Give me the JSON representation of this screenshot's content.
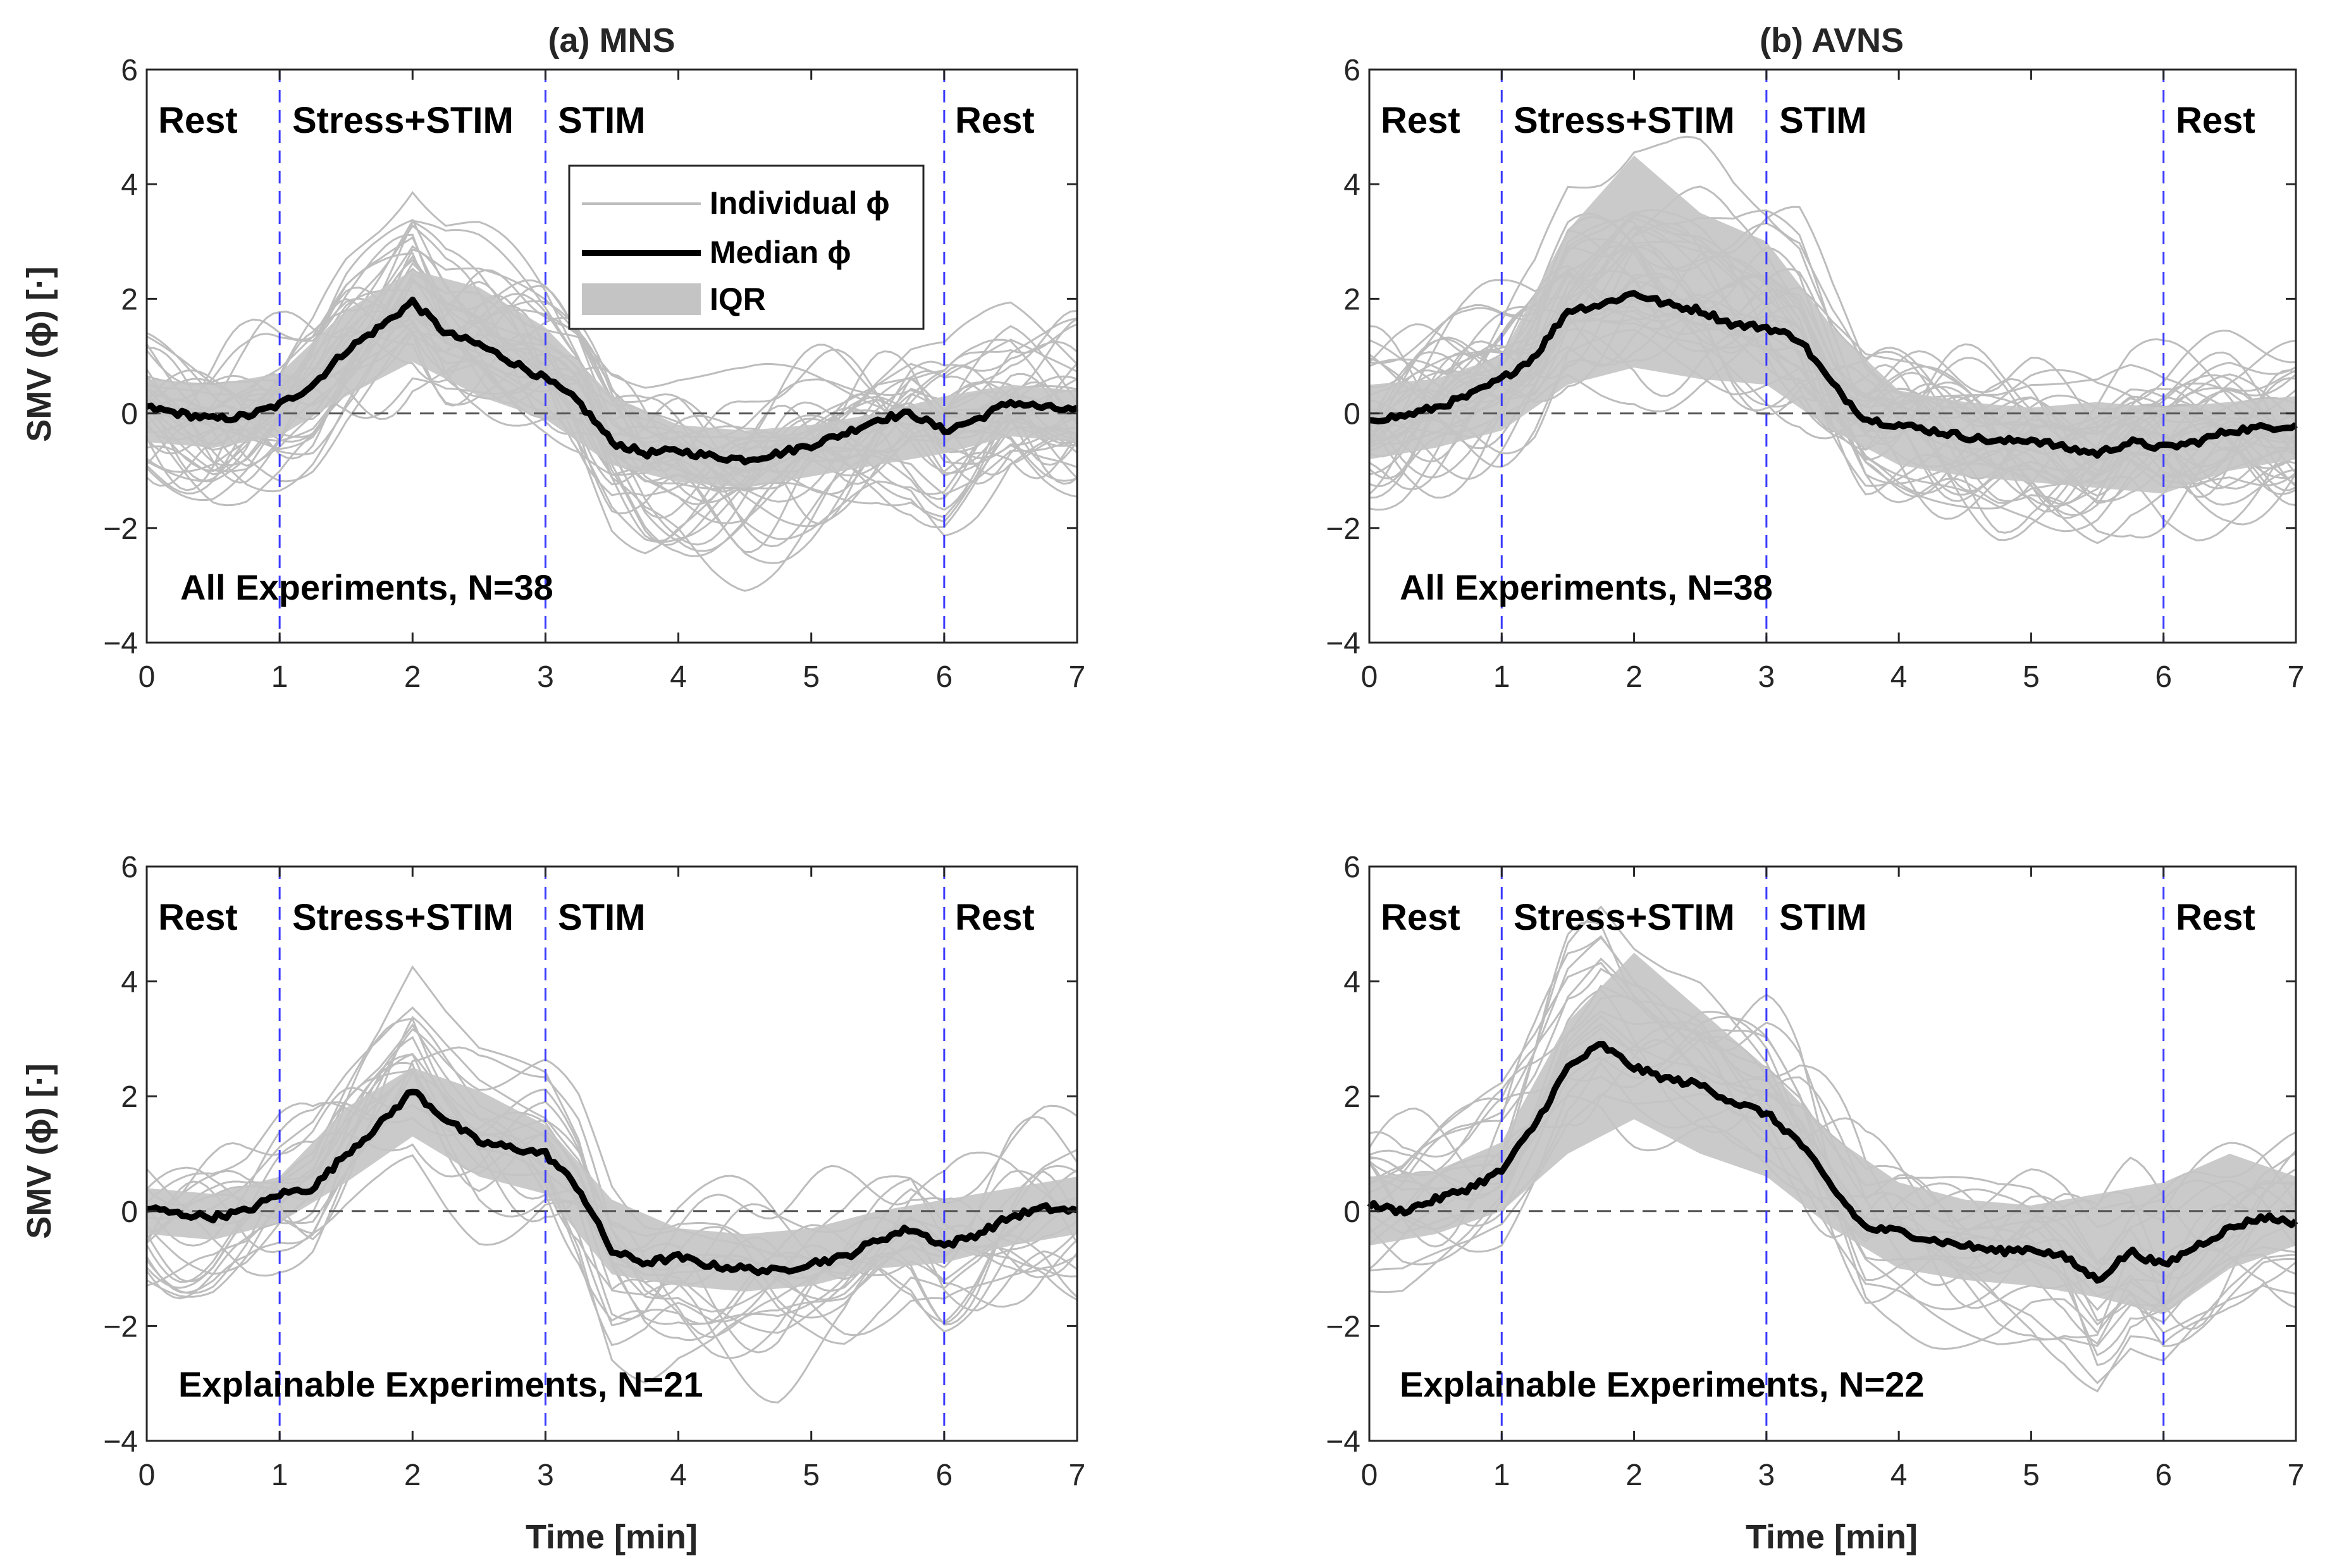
{
  "figure": {
    "ylabel": "SMV (ϕ) [·]",
    "xlabel": "Time [min]",
    "legend": {
      "individual": "Individual ϕ",
      "median": "Median ϕ",
      "iqr": "IQR"
    },
    "phases": [
      {
        "label": "Rest",
        "start": 0
      },
      {
        "label": "Stress+STIM",
        "start": 1
      },
      {
        "label": "STIM",
        "start": 3
      },
      {
        "label": "Rest",
        "start": 6
      }
    ],
    "phase_boundaries": [
      1,
      3,
      6
    ],
    "colors": {
      "individual": "#bdbdbd",
      "median": "#000000",
      "iqr": "#c4c4c4",
      "boundary": "#3b3bff",
      "zero": "#555555"
    }
  },
  "chart_data": [
    {
      "id": "a-top",
      "type": "line",
      "title": "(a) MNS",
      "annotation": "All Experiments, N=38",
      "n_individual": 38,
      "xlim": [
        0,
        7
      ],
      "ylim": [
        -4,
        6
      ],
      "xticks": [
        "0",
        "1",
        "2",
        "3",
        "4",
        "5",
        "6",
        "7"
      ],
      "yticks": [
        "6",
        "4",
        "2",
        "0",
        "−2",
        "−4"
      ],
      "series": [
        {
          "name": "Median ϕ",
          "x": [
            0,
            0.25,
            0.5,
            0.75,
            1,
            1.25,
            1.5,
            1.75,
            2,
            2.25,
            2.5,
            2.75,
            3,
            3.25,
            3.5,
            3.75,
            4,
            4.25,
            4.5,
            4.75,
            5,
            5.25,
            5.5,
            5.75,
            6,
            6.25,
            6.5,
            6.75,
            7
          ],
          "y": [
            0.1,
            0,
            -0.1,
            -0.05,
            0.15,
            0.5,
            1.1,
            1.5,
            1.95,
            1.4,
            1.2,
            0.9,
            0.6,
            0.2,
            -0.5,
            -0.7,
            -0.65,
            -0.75,
            -0.8,
            -0.7,
            -0.55,
            -0.35,
            -0.1,
            0,
            -0.3,
            -0.1,
            0.2,
            0.1,
            0.05
          ]
        },
        {
          "name": "IQR upper",
          "x": [
            0,
            0.5,
            1,
            1.5,
            2,
            2.5,
            3,
            3.5,
            4,
            4.5,
            5,
            5.5,
            6,
            6.5,
            7
          ],
          "y": [
            0.6,
            0.5,
            0.7,
            1.8,
            2.5,
            2.2,
            1.5,
            0.3,
            -0.2,
            -0.3,
            -0.2,
            0,
            0.3,
            0.5,
            0.4
          ]
        },
        {
          "name": "IQR lower",
          "x": [
            0,
            0.5,
            1,
            1.5,
            2,
            2.5,
            3,
            3.5,
            4,
            4.5,
            5,
            5.5,
            6,
            6.5,
            7
          ],
          "y": [
            -0.5,
            -0.6,
            -0.4,
            0.3,
            0.9,
            0.3,
            -0.1,
            -0.9,
            -1.2,
            -1.3,
            -1.1,
            -0.9,
            -0.7,
            -0.4,
            -0.5
          ]
        }
      ]
    },
    {
      "id": "b-top",
      "type": "line",
      "title": "(b) AVNS",
      "annotation": "All Experiments, N=38",
      "n_individual": 38,
      "xlim": [
        0,
        7
      ],
      "ylim": [
        -4,
        6
      ],
      "xticks": [
        "0",
        "1",
        "2",
        "3",
        "4",
        "5",
        "6",
        "7"
      ],
      "yticks": [
        "6",
        "4",
        "2",
        "0",
        "−2",
        "−4"
      ],
      "series": [
        {
          "name": "Median ϕ",
          "x": [
            0,
            0.25,
            0.5,
            0.75,
            1,
            1.25,
            1.5,
            1.75,
            2,
            2.25,
            2.5,
            2.75,
            3,
            3.25,
            3.5,
            3.75,
            4,
            4.25,
            4.5,
            4.75,
            5,
            5.25,
            5.5,
            5.75,
            6,
            6.25,
            6.5,
            6.75,
            7
          ],
          "y": [
            -0.1,
            -0.05,
            0.1,
            0.3,
            0.6,
            1.0,
            1.8,
            1.9,
            2.1,
            1.9,
            1.8,
            1.55,
            1.5,
            1.3,
            0.5,
            -0.1,
            -0.2,
            -0.3,
            -0.4,
            -0.5,
            -0.45,
            -0.6,
            -0.7,
            -0.5,
            -0.6,
            -0.5,
            -0.3,
            -0.25,
            -0.2
          ]
        },
        {
          "name": "IQR upper",
          "x": [
            0,
            0.5,
            1,
            1.5,
            2,
            2.5,
            3,
            3.5,
            4,
            4.5,
            5,
            5.5,
            6,
            6.5,
            7
          ],
          "y": [
            0.5,
            0.6,
            1.0,
            3.2,
            4.5,
            3.5,
            3.0,
            1.5,
            0.4,
            0.2,
            0.1,
            0.2,
            0.1,
            0.2,
            0.3
          ]
        },
        {
          "name": "IQR lower",
          "x": [
            0,
            0.5,
            1,
            1.5,
            2,
            2.5,
            3,
            3.5,
            4,
            4.5,
            5,
            5.5,
            6,
            6.5,
            7
          ],
          "y": [
            -0.8,
            -0.6,
            -0.3,
            0.5,
            0.8,
            0.6,
            0.5,
            -0.3,
            -0.9,
            -1.1,
            -1.2,
            -1.3,
            -1.4,
            -1.0,
            -0.8
          ]
        }
      ]
    },
    {
      "id": "a-bottom",
      "type": "line",
      "title": "",
      "annotation": "Explainable Experiments, N=21",
      "n_individual": 21,
      "xlim": [
        0,
        7
      ],
      "ylim": [
        -4,
        6
      ],
      "xticks": [
        "0",
        "1",
        "2",
        "3",
        "4",
        "5",
        "6",
        "7"
      ],
      "yticks": [
        "6",
        "4",
        "2",
        "0",
        "−2",
        "−4"
      ],
      "series": [
        {
          "name": "Median ϕ",
          "x": [
            0,
            0.25,
            0.5,
            0.75,
            1,
            1.25,
            1.5,
            1.75,
            2,
            2.25,
            2.5,
            2.75,
            3,
            3.25,
            3.5,
            3.75,
            4,
            4.25,
            4.5,
            4.75,
            5,
            5.25,
            5.5,
            5.75,
            6,
            6.25,
            6.5,
            6.75,
            7
          ],
          "y": [
            0.05,
            -0.05,
            -0.1,
            0,
            0.3,
            0.4,
            1.0,
            1.5,
            2.1,
            1.6,
            1.2,
            1.1,
            1.0,
            0.4,
            -0.7,
            -0.9,
            -0.8,
            -0.95,
            -1.0,
            -1.05,
            -0.9,
            -0.8,
            -0.5,
            -0.3,
            -0.6,
            -0.4,
            -0.1,
            0.05,
            0
          ]
        },
        {
          "name": "IQR upper",
          "x": [
            0,
            0.5,
            1,
            1.5,
            2,
            2.5,
            3,
            3.5,
            4,
            4.5,
            5,
            5.5,
            6,
            6.5,
            7
          ],
          "y": [
            0.4,
            0.3,
            0.6,
            1.8,
            2.5,
            2.1,
            1.5,
            0.2,
            -0.3,
            -0.4,
            -0.3,
            0,
            0.2,
            0.4,
            0.6
          ]
        },
        {
          "name": "IQR lower",
          "x": [
            0,
            0.5,
            1,
            1.5,
            2,
            2.5,
            3,
            3.5,
            4,
            4.5,
            5,
            5.5,
            6,
            6.5,
            7
          ],
          "y": [
            -0.4,
            -0.5,
            -0.2,
            0.5,
            1.3,
            0.6,
            0.3,
            -1.1,
            -1.3,
            -1.4,
            -1.3,
            -1.0,
            -0.9,
            -0.6,
            -0.4
          ]
        }
      ]
    },
    {
      "id": "b-bottom",
      "type": "line",
      "title": "",
      "annotation": "Explainable Experiments, N=22",
      "n_individual": 22,
      "xlim": [
        0,
        7
      ],
      "ylim": [
        -4,
        6
      ],
      "xticks": [
        "0",
        "1",
        "2",
        "3",
        "4",
        "5",
        "6",
        "7"
      ],
      "yticks": [
        "6",
        "4",
        "2",
        "0",
        "−2",
        "−4"
      ],
      "series": [
        {
          "name": "Median ϕ",
          "x": [
            0,
            0.25,
            0.5,
            0.75,
            1,
            1.25,
            1.5,
            1.75,
            2,
            2.25,
            2.5,
            2.75,
            3,
            3.25,
            3.5,
            3.75,
            4,
            4.25,
            4.5,
            4.75,
            5,
            5.25,
            5.5,
            5.75,
            6,
            6.25,
            6.5,
            6.75,
            7
          ],
          "y": [
            0.1,
            0,
            0.2,
            0.4,
            0.7,
            1.5,
            2.5,
            2.9,
            2.5,
            2.3,
            2.2,
            1.9,
            1.7,
            1.2,
            0.4,
            -0.3,
            -0.35,
            -0.5,
            -0.6,
            -0.7,
            -0.65,
            -0.8,
            -1.2,
            -0.7,
            -0.95,
            -0.6,
            -0.3,
            -0.1,
            -0.2
          ]
        },
        {
          "name": "IQR upper",
          "x": [
            0,
            0.5,
            1,
            1.5,
            2,
            2.5,
            3,
            3.5,
            4,
            4.5,
            5,
            5.5,
            6,
            6.5,
            7
          ],
          "y": [
            0.6,
            0.7,
            1.2,
            3.3,
            4.5,
            3.5,
            2.5,
            1.3,
            0.5,
            0.2,
            0.1,
            0.3,
            0.5,
            1.0,
            0.6
          ]
        },
        {
          "name": "IQR lower",
          "x": [
            0,
            0.5,
            1,
            1.5,
            2,
            2.5,
            3,
            3.5,
            4,
            4.5,
            5,
            5.5,
            6,
            6.5,
            7
          ],
          "y": [
            -0.6,
            -0.4,
            0,
            1.0,
            1.6,
            1.0,
            0.6,
            -0.3,
            -1.0,
            -1.2,
            -1.3,
            -1.5,
            -1.8,
            -1.0,
            -0.6
          ]
        }
      ]
    }
  ]
}
